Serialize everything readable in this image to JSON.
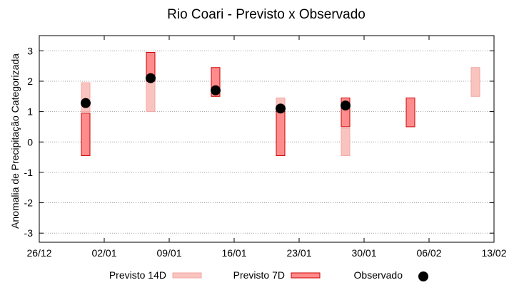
{
  "chart_data": {
    "type": "range-bar",
    "title": "Rio Coari - Previsto x Observado",
    "ylabel": "Anomalia de Precipitação Categorizada",
    "xlabel": "",
    "x_ticks": [
      "26/12",
      "02/01",
      "09/01",
      "16/01",
      "23/01",
      "30/01",
      "06/02",
      "13/02"
    ],
    "y_ticks": [
      "3",
      "2",
      "1",
      "0",
      "-1",
      "-2",
      "-3"
    ],
    "ylim": [
      -3.3,
      3.5
    ],
    "grid": true,
    "legend_placement": "bottom",
    "series": [
      {
        "name": "Previsto 14D",
        "color": "#f9c4bf",
        "ranges": [
          {
            "date": "31/12",
            "low": 1.0,
            "high": 1.95
          },
          {
            "date": "07/01",
            "low": 1.0,
            "high": 2.95
          },
          {
            "date": "21/01",
            "low": 0.5,
            "high": 1.45
          },
          {
            "date": "28/01",
            "low": -0.45,
            "high": 0.45
          },
          {
            "date": "11/02",
            "low": 1.5,
            "high": 2.45
          }
        ]
      },
      {
        "name": "Previsto 7D",
        "color": "#ff8c8c",
        "ranges": [
          {
            "date": "31/12",
            "low": -0.45,
            "high": 0.95
          },
          {
            "date": "07/01",
            "low": 2.0,
            "high": 2.95
          },
          {
            "date": "14/01",
            "low": 1.5,
            "high": 2.45
          },
          {
            "date": "21/01",
            "low": -0.45,
            "high": 1.0
          },
          {
            "date": "28/01",
            "low": 0.5,
            "high": 1.45
          },
          {
            "date": "04/02",
            "low": 0.5,
            "high": 1.45
          }
        ]
      },
      {
        "name": "Observado",
        "color": "#000000",
        "points": [
          {
            "date": "31/12",
            "value": 1.28
          },
          {
            "date": "07/01",
            "value": 2.1
          },
          {
            "date": "14/01",
            "value": 1.7
          },
          {
            "date": "21/01",
            "value": 1.1
          },
          {
            "date": "28/01",
            "value": 1.2
          }
        ]
      }
    ]
  }
}
